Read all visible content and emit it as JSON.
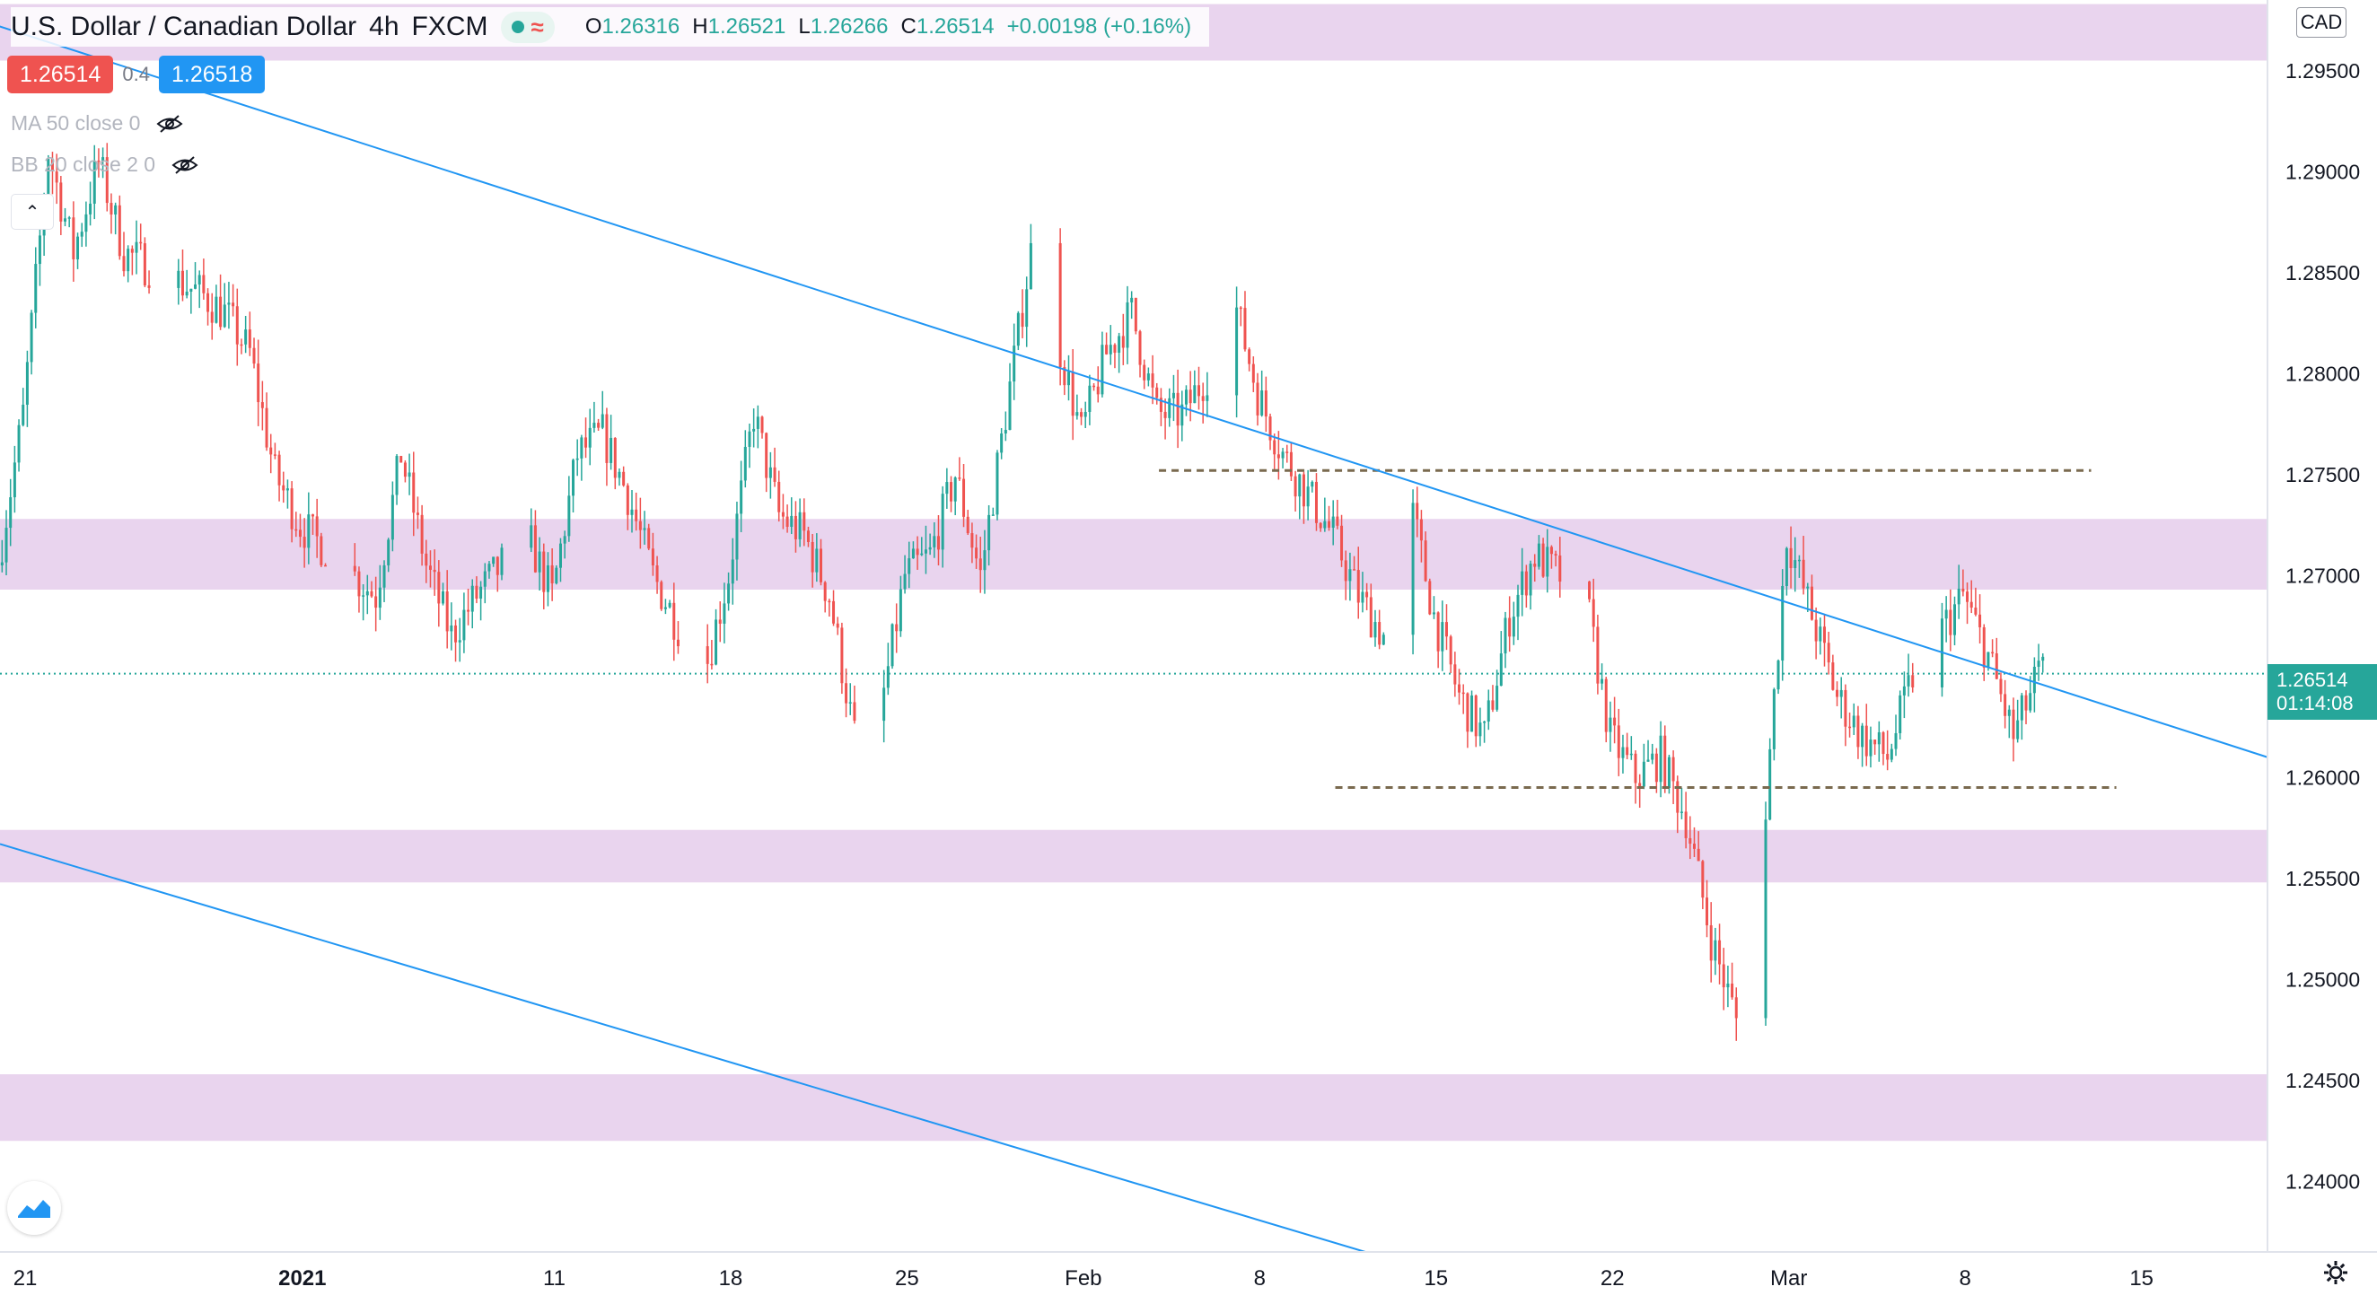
{
  "header": {
    "symbol": "U.S. Dollar / Canadian Dollar",
    "interval": "4h",
    "exchange": "FXCM",
    "ohlc": {
      "open_label": "O",
      "open": "1.26316",
      "high_label": "H",
      "high": "1.26521",
      "low_label": "L",
      "low": "1.26266",
      "close_label": "C",
      "close": "1.26514",
      "change": "+0.00198 (+0.16%)"
    }
  },
  "trade": {
    "sell_price": "1.26514",
    "spread": "0.4",
    "buy_price": "1.26518"
  },
  "indicators": [
    {
      "label": "MA 50 close 0",
      "icon": "eye-hidden-icon"
    },
    {
      "label": "BB 20 close 2 0",
      "icon": "eye-hidden-icon"
    }
  ],
  "price_scale": {
    "currency": "CAD",
    "last_price": "1.26514",
    "countdown": "01:14:08"
  },
  "colors": {
    "up": "#26a69a",
    "down": "#ef5350",
    "zone": "#e1c6e8",
    "trendline": "#2196f3",
    "level_line": "#7a6a4f"
  },
  "chart_data": {
    "type": "candlestick",
    "title": "U.S. Dollar / Canadian Dollar · 4h · FXCM",
    "ylim": [
      1.2365,
      1.2985
    ],
    "y_ticks": [
      1.295,
      1.29,
      1.285,
      1.28,
      1.275,
      1.27,
      1.265,
      1.26,
      1.255,
      1.25,
      1.245,
      1.24
    ],
    "y_tick_labels": [
      "1.29500",
      "1.29000",
      "1.28500",
      "1.28000",
      "1.27500",
      "1.27000",
      "1.26500",
      "1.26000",
      "1.25500",
      "1.25000",
      "1.24500",
      "1.24000"
    ],
    "x_range": [
      "2020-12-20",
      "2021-03-20"
    ],
    "x_ticks": [
      {
        "date": "2020-12-21",
        "label": "21"
      },
      {
        "date": "2021-01-01",
        "label": "2021"
      },
      {
        "date": "2021-01-11",
        "label": "11"
      },
      {
        "date": "2021-01-18",
        "label": "18"
      },
      {
        "date": "2021-01-25",
        "label": "25"
      },
      {
        "date": "2021-02-01",
        "label": "Feb"
      },
      {
        "date": "2021-02-08",
        "label": "8"
      },
      {
        "date": "2021-02-15",
        "label": "15"
      },
      {
        "date": "2021-02-22",
        "label": "22"
      },
      {
        "date": "2021-03-01",
        "label": "Mar"
      },
      {
        "date": "2021-03-08",
        "label": "8"
      },
      {
        "date": "2021-03-15",
        "label": "15"
      }
    ],
    "price_path": [
      [
        "2020-12-20",
        1.2705
      ],
      [
        "2020-12-21",
        1.278
      ],
      [
        "2020-12-22",
        1.291
      ],
      [
        "2020-12-23",
        1.286
      ],
      [
        "2020-12-24",
        1.2905
      ],
      [
        "2020-12-25",
        1.286
      ],
      [
        "2020-12-28",
        1.284
      ],
      [
        "2020-12-29",
        1.283
      ],
      [
        "2020-12-30",
        1.281
      ],
      [
        "2020-12-31",
        1.275
      ],
      [
        "2021-01-01",
        1.2725
      ],
      [
        "2021-01-04",
        1.269
      ],
      [
        "2021-01-05",
        1.276
      ],
      [
        "2021-01-06",
        1.2705
      ],
      [
        "2021-01-07",
        1.267
      ],
      [
        "2021-01-08",
        1.269
      ],
      [
        "2021-01-10",
        1.272
      ],
      [
        "2021-01-11",
        1.269
      ],
      [
        "2021-01-12",
        1.276
      ],
      [
        "2021-01-13",
        1.277
      ],
      [
        "2021-01-14",
        1.274
      ],
      [
        "2021-01-15",
        1.27
      ],
      [
        "2021-01-17",
        1.265
      ],
      [
        "2021-01-18",
        1.27
      ],
      [
        "2021-01-19",
        1.278
      ],
      [
        "2021-01-20",
        1.273
      ],
      [
        "2021-01-21",
        1.272
      ],
      [
        "2021-01-22",
        1.269
      ],
      [
        "2021-01-23",
        1.262
      ],
      [
        "2021-01-24",
        1.263
      ],
      [
        "2021-01-25",
        1.27
      ],
      [
        "2021-01-26",
        1.271
      ],
      [
        "2021-01-27",
        1.275
      ],
      [
        "2021-01-28",
        1.27
      ],
      [
        "2021-01-29",
        1.278
      ],
      [
        "2021-01-30",
        1.286
      ],
      [
        "2021-01-31",
        1.282
      ],
      [
        "2021-02-01",
        1.277
      ],
      [
        "2021-02-02",
        1.281
      ],
      [
        "2021-02-03",
        1.283
      ],
      [
        "2021-02-04",
        1.278
      ],
      [
        "2021-02-05",
        1.278
      ],
      [
        "2021-02-06",
        1.28
      ],
      [
        "2021-02-07",
        1.284
      ],
      [
        "2021-02-08",
        1.279
      ],
      [
        "2021-02-09",
        1.276
      ],
      [
        "2021-02-10",
        1.274
      ],
      [
        "2021-02-11",
        1.272
      ],
      [
        "2021-02-12",
        1.269
      ],
      [
        "2021-02-13",
        1.267
      ],
      [
        "2021-02-14",
        1.274
      ],
      [
        "2021-02-15",
        1.268
      ],
      [
        "2021-02-16",
        1.264
      ],
      [
        "2021-02-17",
        1.262
      ],
      [
        "2021-02-18",
        1.268
      ],
      [
        "2021-02-19",
        1.271
      ],
      [
        "2021-02-20",
        1.27
      ],
      [
        "2021-02-21",
        1.269
      ],
      [
        "2021-02-22",
        1.262
      ],
      [
        "2021-02-23",
        1.26
      ],
      [
        "2021-02-24",
        1.261
      ],
      [
        "2021-02-25",
        1.258
      ],
      [
        "2021-02-26",
        1.252
      ],
      [
        "2021-02-27",
        1.248
      ],
      [
        "2021-02-28",
        1.256
      ],
      [
        "2021-03-01",
        1.272
      ],
      [
        "2021-03-02",
        1.268
      ],
      [
        "2021-03-03",
        1.264
      ],
      [
        "2021-03-04",
        1.262
      ],
      [
        "2021-03-05",
        1.261
      ],
      [
        "2021-03-06",
        1.265
      ],
      [
        "2021-03-07",
        1.267
      ],
      [
        "2021-03-08",
        1.269
      ],
      [
        "2021-03-09",
        1.266
      ],
      [
        "2021-03-10",
        1.262
      ],
      [
        "2021-03-11",
        1.26514
      ]
    ],
    "zones": [
      [
        1.2955,
        1.2983
      ],
      [
        1.2693,
        1.2728
      ],
      [
        1.2548,
        1.2574
      ],
      [
        1.242,
        1.2453
      ]
    ],
    "levels": [
      {
        "value": 1.2752,
        "from": "2021-02-04",
        "to": "2021-03-13"
      },
      {
        "value": 1.2595,
        "from": "2021-02-11",
        "to": "2021-03-14"
      }
    ],
    "trendlines": [
      {
        "from": [
          "2020-12-13",
          1.3
        ],
        "to": [
          "2021-03-20",
          1.261
        ]
      },
      {
        "from": [
          "2020-12-20",
          1.2567
        ],
        "to": [
          "2021-02-13",
          1.2362
        ]
      }
    ],
    "last_price_line": 1.26514
  }
}
